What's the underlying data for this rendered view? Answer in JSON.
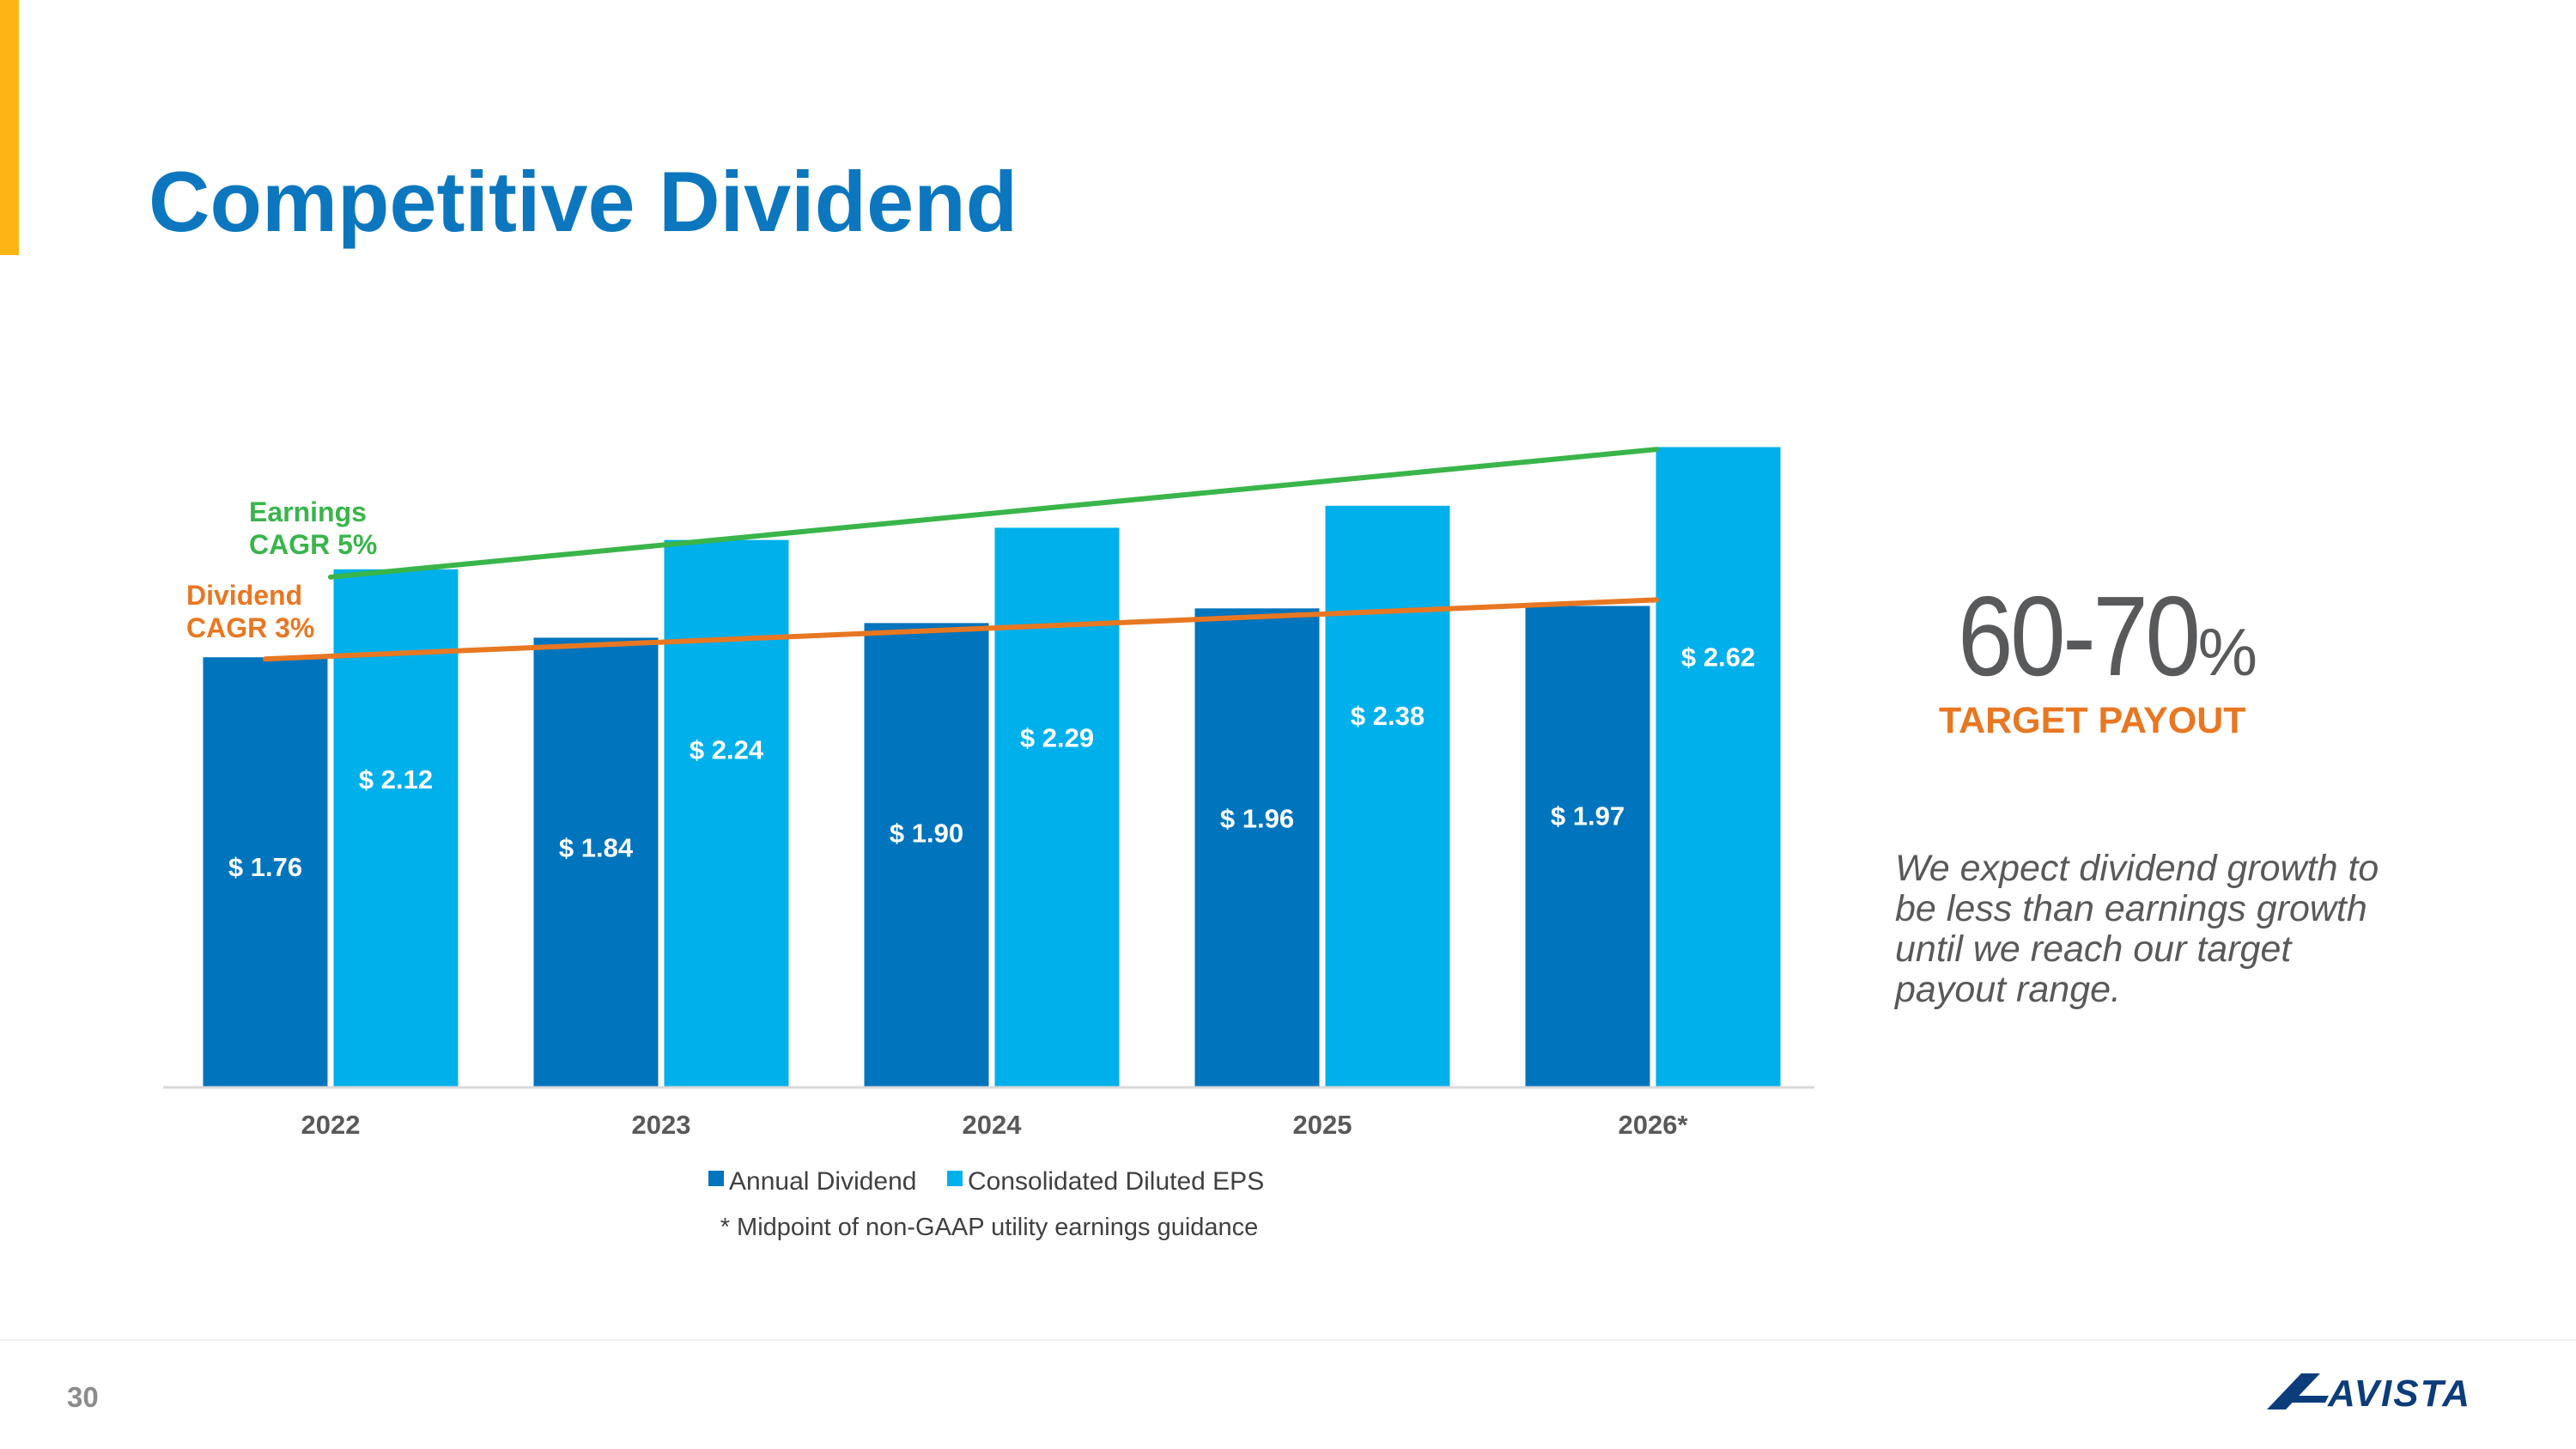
{
  "title": "Competitive Dividend",
  "page_number": "30",
  "payout": {
    "range": "60-70",
    "unit": "%",
    "caption": "TARGET PAYOUT"
  },
  "statement": "We expect dividend growth to be less than earnings growth until we reach our target payout range.",
  "logo_text": "AVISTA",
  "colors": {
    "title": "#0C77BE",
    "accent": "#FDB515",
    "dividend": "#0074BD",
    "eps": "#00B0EB",
    "earnings_trend": "#39B54A",
    "dividend_trend": "#E87722",
    "payout_caption": "#E87722",
    "logo": "#0C3D7A"
  },
  "chart_data": {
    "type": "bar",
    "categories": [
      "2022",
      "2023",
      "2024",
      "2025",
      "2026*"
    ],
    "series": [
      {
        "name": "Annual Dividend",
        "values": [
          1.76,
          1.84,
          1.9,
          1.96,
          1.97
        ],
        "labels": [
          "$ 1.76",
          "$ 1.84",
          "$ 1.90",
          "$ 1.96",
          "$ 1.97"
        ],
        "color": "#0074BD"
      },
      {
        "name": "Consolidated Diluted EPS",
        "values": [
          2.12,
          2.24,
          2.29,
          2.38,
          2.62
        ],
        "labels": [
          "$ 2.12",
          "$ 2.24",
          "$ 2.29",
          "$ 2.38",
          "$ 2.62"
        ],
        "color": "#00B0EB"
      }
    ],
    "trend_lines": [
      {
        "series": "Consolidated Diluted EPS",
        "label_lines": [
          "Earnings",
          "CAGR 5%"
        ],
        "color": "#39B54A"
      },
      {
        "series": "Annual Dividend",
        "label_lines": [
          "Dividend",
          "CAGR 3%"
        ],
        "color": "#E87722"
      }
    ],
    "ylim": [
      0,
      2.65
    ],
    "grid": false,
    "legend": "bottom",
    "footnote": "* Midpoint of non-GAAP utility earnings guidance"
  }
}
